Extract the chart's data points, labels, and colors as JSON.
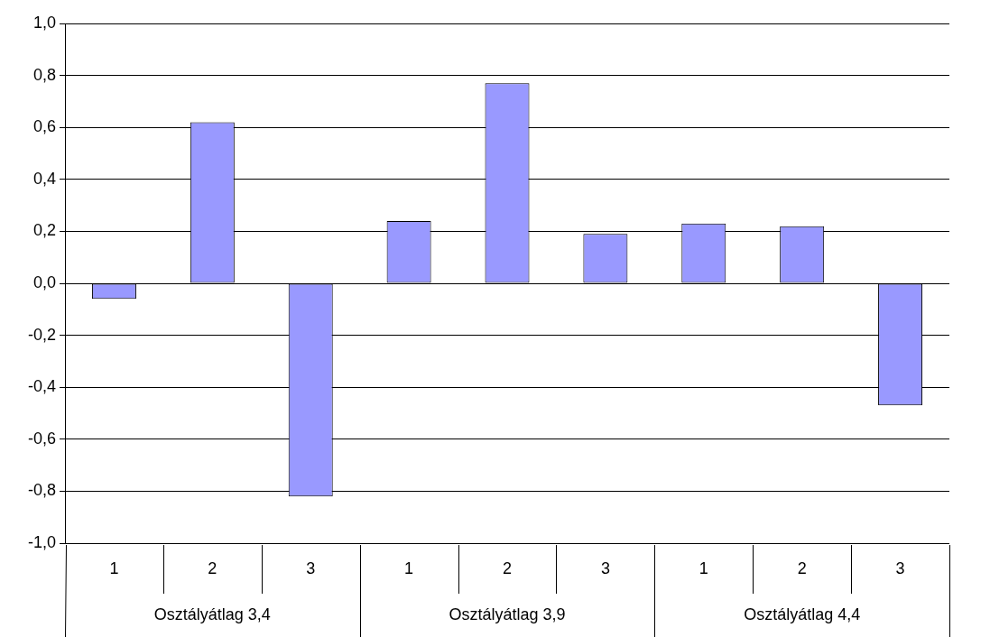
{
  "chart_data": {
    "type": "bar",
    "categories": [
      "1",
      "2",
      "3",
      "1",
      "2",
      "3",
      "1",
      "2",
      "3"
    ],
    "values": [
      -0.06,
      0.62,
      -0.82,
      0.24,
      0.77,
      0.19,
      0.23,
      0.22,
      -0.47
    ],
    "color": "#9999ff",
    "ylim": [
      -1,
      1
    ],
    "yticks": [
      {
        "value": -1,
        "label": "-1,0"
      },
      {
        "value": -0.8,
        "label": "-0,8"
      },
      {
        "value": -0.6,
        "label": "-0,6"
      },
      {
        "value": -0.4,
        "label": "-0,4"
      },
      {
        "value": -0.2,
        "label": "-0,2"
      },
      {
        "value": 0,
        "label": "0,0"
      },
      {
        "value": 0.2,
        "label": "0,2"
      },
      {
        "value": 0.4,
        "label": "0,4"
      },
      {
        "value": 0.6,
        "label": "0,6"
      },
      {
        "value": 0.8,
        "label": "0,8"
      },
      {
        "value": 1,
        "label": "1,0"
      }
    ],
    "grid": "y",
    "legend": false,
    "annotations": [
      "Osztályátlag 3,4",
      "Osztályátlag 3,9",
      "Osztályátlag 4,4"
    ]
  }
}
